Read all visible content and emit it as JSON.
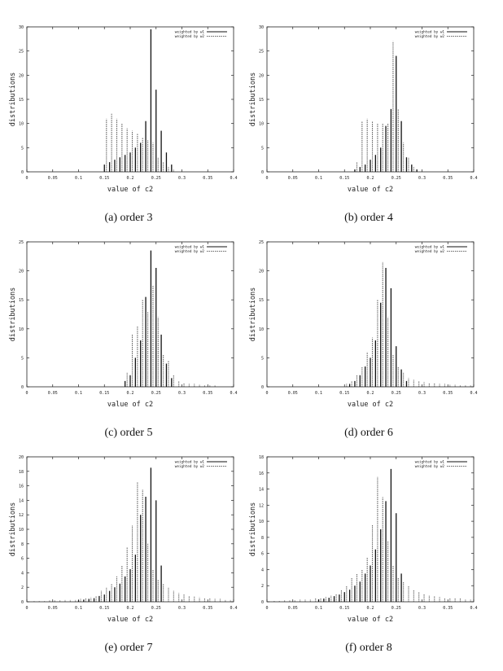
{
  "chart_data": [
    {
      "panel": "a",
      "caption": "(a) order 3",
      "type": "bar",
      "xlabel": "value of c2",
      "ylabel": "distributions",
      "xlim": [
        0,
        0.4
      ],
      "ylim": [
        0,
        30
      ],
      "xticks": [
        0,
        0.05,
        0.1,
        0.15,
        0.2,
        0.25,
        0.3,
        0.35,
        0.4
      ],
      "xtick_labels": [
        "0",
        "0.05",
        "0.1",
        "0.15",
        "0.2",
        "0.25",
        "0.3",
        "0.35",
        "0.4"
      ],
      "yticks": [
        0,
        5,
        10,
        15,
        20,
        25,
        30
      ],
      "ytick_labels": [
        "0",
        "5",
        "10",
        "15",
        "20",
        "25",
        "30"
      ],
      "legend_position": "top-right",
      "series": [
        {
          "name": "weighted by w1",
          "style": "solid",
          "x": [
            0.15,
            0.16,
            0.17,
            0.18,
            0.19,
            0.2,
            0.21,
            0.22,
            0.23,
            0.24,
            0.25,
            0.26,
            0.27,
            0.28
          ],
          "values": [
            1.5,
            2.0,
            2.5,
            3.0,
            3.5,
            4.0,
            5.0,
            6.0,
            10.5,
            29.5,
            17.0,
            8.5,
            4.0,
            1.5
          ]
        },
        {
          "name": "weighted by w2",
          "style": "dashed",
          "x": [
            0.154,
            0.164,
            0.174,
            0.184,
            0.194,
            0.204,
            0.214,
            0.224,
            0.234,
            0.244,
            0.254,
            0.264,
            0.274,
            0.284
          ],
          "values": [
            11.0,
            12.0,
            11.0,
            10.0,
            9.0,
            8.5,
            8.0,
            7.0,
            6.5,
            6.0,
            3.0,
            2.0,
            1.0,
            0.5
          ]
        }
      ]
    },
    {
      "panel": "b",
      "caption": "(b) order 4",
      "type": "bar",
      "xlabel": "value of c2",
      "ylabel": "distributions",
      "xlim": [
        0,
        0.4
      ],
      "ylim": [
        0,
        30
      ],
      "xticks": [
        0,
        0.05,
        0.1,
        0.15,
        0.2,
        0.25,
        0.3,
        0.35,
        0.4
      ],
      "xtick_labels": [
        "0",
        "0.05",
        "0.1",
        "0.15",
        "0.2",
        "0.25",
        "0.3",
        "0.35",
        "0.4"
      ],
      "yticks": [
        0,
        5,
        10,
        15,
        20,
        25,
        30
      ],
      "ytick_labels": [
        "0",
        "5",
        "10",
        "15",
        "20",
        "25",
        "30"
      ],
      "legend_position": "top-right",
      "series": [
        {
          "name": "weighted by w1",
          "style": "solid",
          "x": [
            0.17,
            0.18,
            0.19,
            0.2,
            0.21,
            0.22,
            0.23,
            0.24,
            0.25,
            0.26,
            0.27,
            0.28,
            0.29
          ],
          "values": [
            0.5,
            1.0,
            1.5,
            2.5,
            3.5,
            5.0,
            9.5,
            13.0,
            24.0,
            10.5,
            3.0,
            1.5,
            0.5
          ]
        },
        {
          "name": "weighted by w2",
          "style": "dashed",
          "x": [
            0.174,
            0.184,
            0.194,
            0.204,
            0.214,
            0.224,
            0.234,
            0.244,
            0.254,
            0.264,
            0.274,
            0.284
          ],
          "values": [
            2.0,
            10.5,
            11.0,
            10.5,
            10.0,
            10.0,
            10.0,
            27.0,
            13.0,
            6.0,
            3.0,
            1.0
          ]
        }
      ]
    },
    {
      "panel": "c",
      "caption": "(c) order 5",
      "type": "bar",
      "xlabel": "value of c2",
      "ylabel": "distributions",
      "xlim": [
        0,
        0.4
      ],
      "ylim": [
        0,
        25
      ],
      "xticks": [
        0,
        0.05,
        0.1,
        0.15,
        0.2,
        0.25,
        0.3,
        0.35,
        0.4
      ],
      "xtick_labels": [
        "0",
        "0.05",
        "0.1",
        "0.15",
        "0.2",
        "0.25",
        "0.3",
        "0.35",
        "0.4"
      ],
      "yticks": [
        0,
        5,
        10,
        15,
        20,
        25
      ],
      "ytick_labels": [
        "0",
        "5",
        "10",
        "15",
        "20",
        "25"
      ],
      "legend_position": "top-right",
      "series": [
        {
          "name": "weighted by w1",
          "style": "solid",
          "x": [
            0.19,
            0.2,
            0.21,
            0.22,
            0.23,
            0.24,
            0.25,
            0.26,
            0.27,
            0.28
          ],
          "values": [
            1.0,
            2.0,
            5.0,
            8.0,
            15.5,
            23.5,
            20.5,
            9.0,
            4.0,
            1.5
          ]
        },
        {
          "name": "weighted by w2",
          "style": "dashed",
          "x": [
            0.194,
            0.204,
            0.214,
            0.224,
            0.234,
            0.244,
            0.254,
            0.264,
            0.274,
            0.284,
            0.294,
            0.304,
            0.314,
            0.324,
            0.334,
            0.344,
            0.354,
            0.364
          ],
          "values": [
            2.5,
            9.0,
            10.5,
            15.0,
            13.0,
            17.5,
            12.0,
            5.5,
            4.5,
            2.0,
            1.0,
            0.6,
            0.5,
            0.5,
            0.4,
            0.3,
            0.3,
            0.2
          ]
        }
      ]
    },
    {
      "panel": "d",
      "caption": "(d) order 6",
      "type": "bar",
      "xlabel": "value of c2",
      "ylabel": "distributions",
      "xlim": [
        0,
        0.4
      ],
      "ylim": [
        0,
        25
      ],
      "xticks": [
        0,
        0.05,
        0.1,
        0.15,
        0.2,
        0.25,
        0.3,
        0.35,
        0.4
      ],
      "xtick_labels": [
        "0",
        "0.05",
        "0.1",
        "0.15",
        "0.2",
        "0.25",
        "0.3",
        "0.35",
        "0.4"
      ],
      "yticks": [
        0,
        5,
        10,
        15,
        20,
        25
      ],
      "ytick_labels": [
        "0",
        "5",
        "10",
        "15",
        "20",
        "25"
      ],
      "legend_position": "top-right",
      "series": [
        {
          "name": "weighted by w1",
          "style": "solid",
          "x": [
            0.16,
            0.17,
            0.18,
            0.19,
            0.2,
            0.21,
            0.22,
            0.23,
            0.24,
            0.25,
            0.26,
            0.27
          ],
          "values": [
            0.5,
            1.0,
            2.0,
            3.5,
            5.0,
            8.0,
            14.5,
            20.5,
            17.0,
            7.0,
            3.0,
            1.0
          ]
        },
        {
          "name": "weighted by w2",
          "style": "dashed",
          "x": [
            0.154,
            0.164,
            0.174,
            0.184,
            0.194,
            0.204,
            0.214,
            0.224,
            0.234,
            0.244,
            0.254,
            0.264,
            0.274,
            0.284,
            0.294,
            0.304,
            0.314,
            0.324,
            0.334,
            0.344,
            0.354,
            0.364,
            0.374,
            0.384,
            0.394
          ],
          "values": [
            0.5,
            1.0,
            2.0,
            3.5,
            6.0,
            8.5,
            15.0,
            21.5,
            12.0,
            5.5,
            3.5,
            2.5,
            1.5,
            1.2,
            1.0,
            0.8,
            0.7,
            0.6,
            0.5,
            0.5,
            0.4,
            0.4,
            0.3,
            0.3,
            0.3
          ]
        }
      ]
    },
    {
      "panel": "e",
      "caption": "(e) order 7",
      "type": "bar",
      "xlabel": "value of c2",
      "ylabel": "distributions",
      "xlim": [
        0,
        0.4
      ],
      "ylim": [
        0,
        20
      ],
      "xticks": [
        0,
        0.05,
        0.1,
        0.15,
        0.2,
        0.25,
        0.3,
        0.35,
        0.4
      ],
      "xtick_labels": [
        "0",
        "0.05",
        "0.1",
        "0.15",
        "0.2",
        "0.25",
        "0.3",
        "0.35",
        "0.4"
      ],
      "yticks": [
        0,
        2,
        4,
        6,
        8,
        10,
        12,
        14,
        16,
        18,
        20
      ],
      "ytick_labels": [
        "0",
        "2",
        "4",
        "6",
        "8",
        "10",
        "12",
        "14",
        "16",
        "18",
        "20"
      ],
      "legend_position": "top-right",
      "series": [
        {
          "name": "weighted by w1",
          "style": "solid",
          "x": [
            0.1,
            0.11,
            0.12,
            0.13,
            0.14,
            0.15,
            0.16,
            0.17,
            0.18,
            0.19,
            0.2,
            0.21,
            0.22,
            0.23,
            0.24,
            0.25,
            0.26
          ],
          "values": [
            0.2,
            0.3,
            0.4,
            0.5,
            0.8,
            1.0,
            1.5,
            2.0,
            2.5,
            3.5,
            4.5,
            6.5,
            12.0,
            14.5,
            18.5,
            14.0,
            5.0
          ]
        },
        {
          "name": "weighted by w2",
          "style": "dashed",
          "x": [
            0.014,
            0.024,
            0.034,
            0.044,
            0.054,
            0.064,
            0.074,
            0.084,
            0.094,
            0.104,
            0.114,
            0.124,
            0.134,
            0.144,
            0.154,
            0.164,
            0.174,
            0.184,
            0.194,
            0.204,
            0.214,
            0.224,
            0.234,
            0.244,
            0.254,
            0.264,
            0.274,
            0.284,
            0.294,
            0.304,
            0.314,
            0.324,
            0.334,
            0.344,
            0.354,
            0.364,
            0.374,
            0.384,
            0.394
          ],
          "values": [
            0.1,
            0.1,
            0.1,
            0.2,
            0.2,
            0.2,
            0.3,
            0.3,
            0.3,
            0.4,
            0.5,
            0.6,
            0.8,
            1.5,
            2.0,
            2.5,
            3.5,
            5.0,
            7.5,
            10.5,
            16.5,
            15.5,
            8.0,
            4.5,
            3.0,
            2.5,
            2.0,
            1.5,
            1.2,
            1.0,
            0.8,
            0.7,
            0.6,
            0.5,
            0.5,
            0.4,
            0.4,
            0.3,
            0.3
          ]
        }
      ]
    },
    {
      "panel": "f",
      "caption": "(f) order 8",
      "type": "bar",
      "xlabel": "value of c2",
      "ylabel": "distributions",
      "xlim": [
        0,
        0.4
      ],
      "ylim": [
        0,
        18
      ],
      "xticks": [
        0,
        0.05,
        0.1,
        0.15,
        0.2,
        0.25,
        0.3,
        0.35,
        0.4
      ],
      "xtick_labels": [
        "0",
        "0.05",
        "0.1",
        "0.15",
        "0.2",
        "0.25",
        "0.3",
        "0.35",
        "0.4"
      ],
      "yticks": [
        0,
        2,
        4,
        6,
        8,
        10,
        12,
        14,
        16,
        18
      ],
      "ytick_labels": [
        "0",
        "2",
        "4",
        "6",
        "8",
        "10",
        "12",
        "14",
        "16",
        "18"
      ],
      "legend_position": "top-right",
      "series": [
        {
          "name": "weighted by w1",
          "style": "solid",
          "x": [
            0.1,
            0.11,
            0.12,
            0.13,
            0.14,
            0.15,
            0.16,
            0.17,
            0.18,
            0.19,
            0.2,
            0.21,
            0.22,
            0.23,
            0.24,
            0.25,
            0.26
          ],
          "values": [
            0.3,
            0.4,
            0.5,
            0.7,
            0.9,
            1.2,
            1.5,
            2.0,
            2.5,
            3.5,
            4.5,
            6.5,
            9.0,
            12.5,
            16.5,
            11.0,
            3.5
          ]
        },
        {
          "name": "weighted by w2",
          "style": "dashed",
          "x": [
            0.014,
            0.024,
            0.034,
            0.044,
            0.054,
            0.064,
            0.074,
            0.084,
            0.094,
            0.104,
            0.114,
            0.124,
            0.134,
            0.144,
            0.154,
            0.164,
            0.174,
            0.184,
            0.194,
            0.204,
            0.214,
            0.224,
            0.234,
            0.244,
            0.254,
            0.264,
            0.274,
            0.284,
            0.294,
            0.304,
            0.314,
            0.324,
            0.334,
            0.344,
            0.354,
            0.364,
            0.374,
            0.384,
            0.394
          ],
          "values": [
            0.1,
            0.1,
            0.2,
            0.2,
            0.2,
            0.3,
            0.3,
            0.3,
            0.4,
            0.5,
            0.6,
            0.8,
            1.0,
            1.5,
            2.0,
            3.0,
            3.5,
            4.0,
            5.5,
            9.5,
            15.5,
            13.0,
            7.5,
            4.5,
            3.0,
            2.5,
            2.0,
            1.5,
            1.2,
            1.0,
            0.8,
            0.7,
            0.6,
            0.5,
            0.5,
            0.4,
            0.4,
            0.3,
            0.3
          ]
        }
      ]
    }
  ]
}
